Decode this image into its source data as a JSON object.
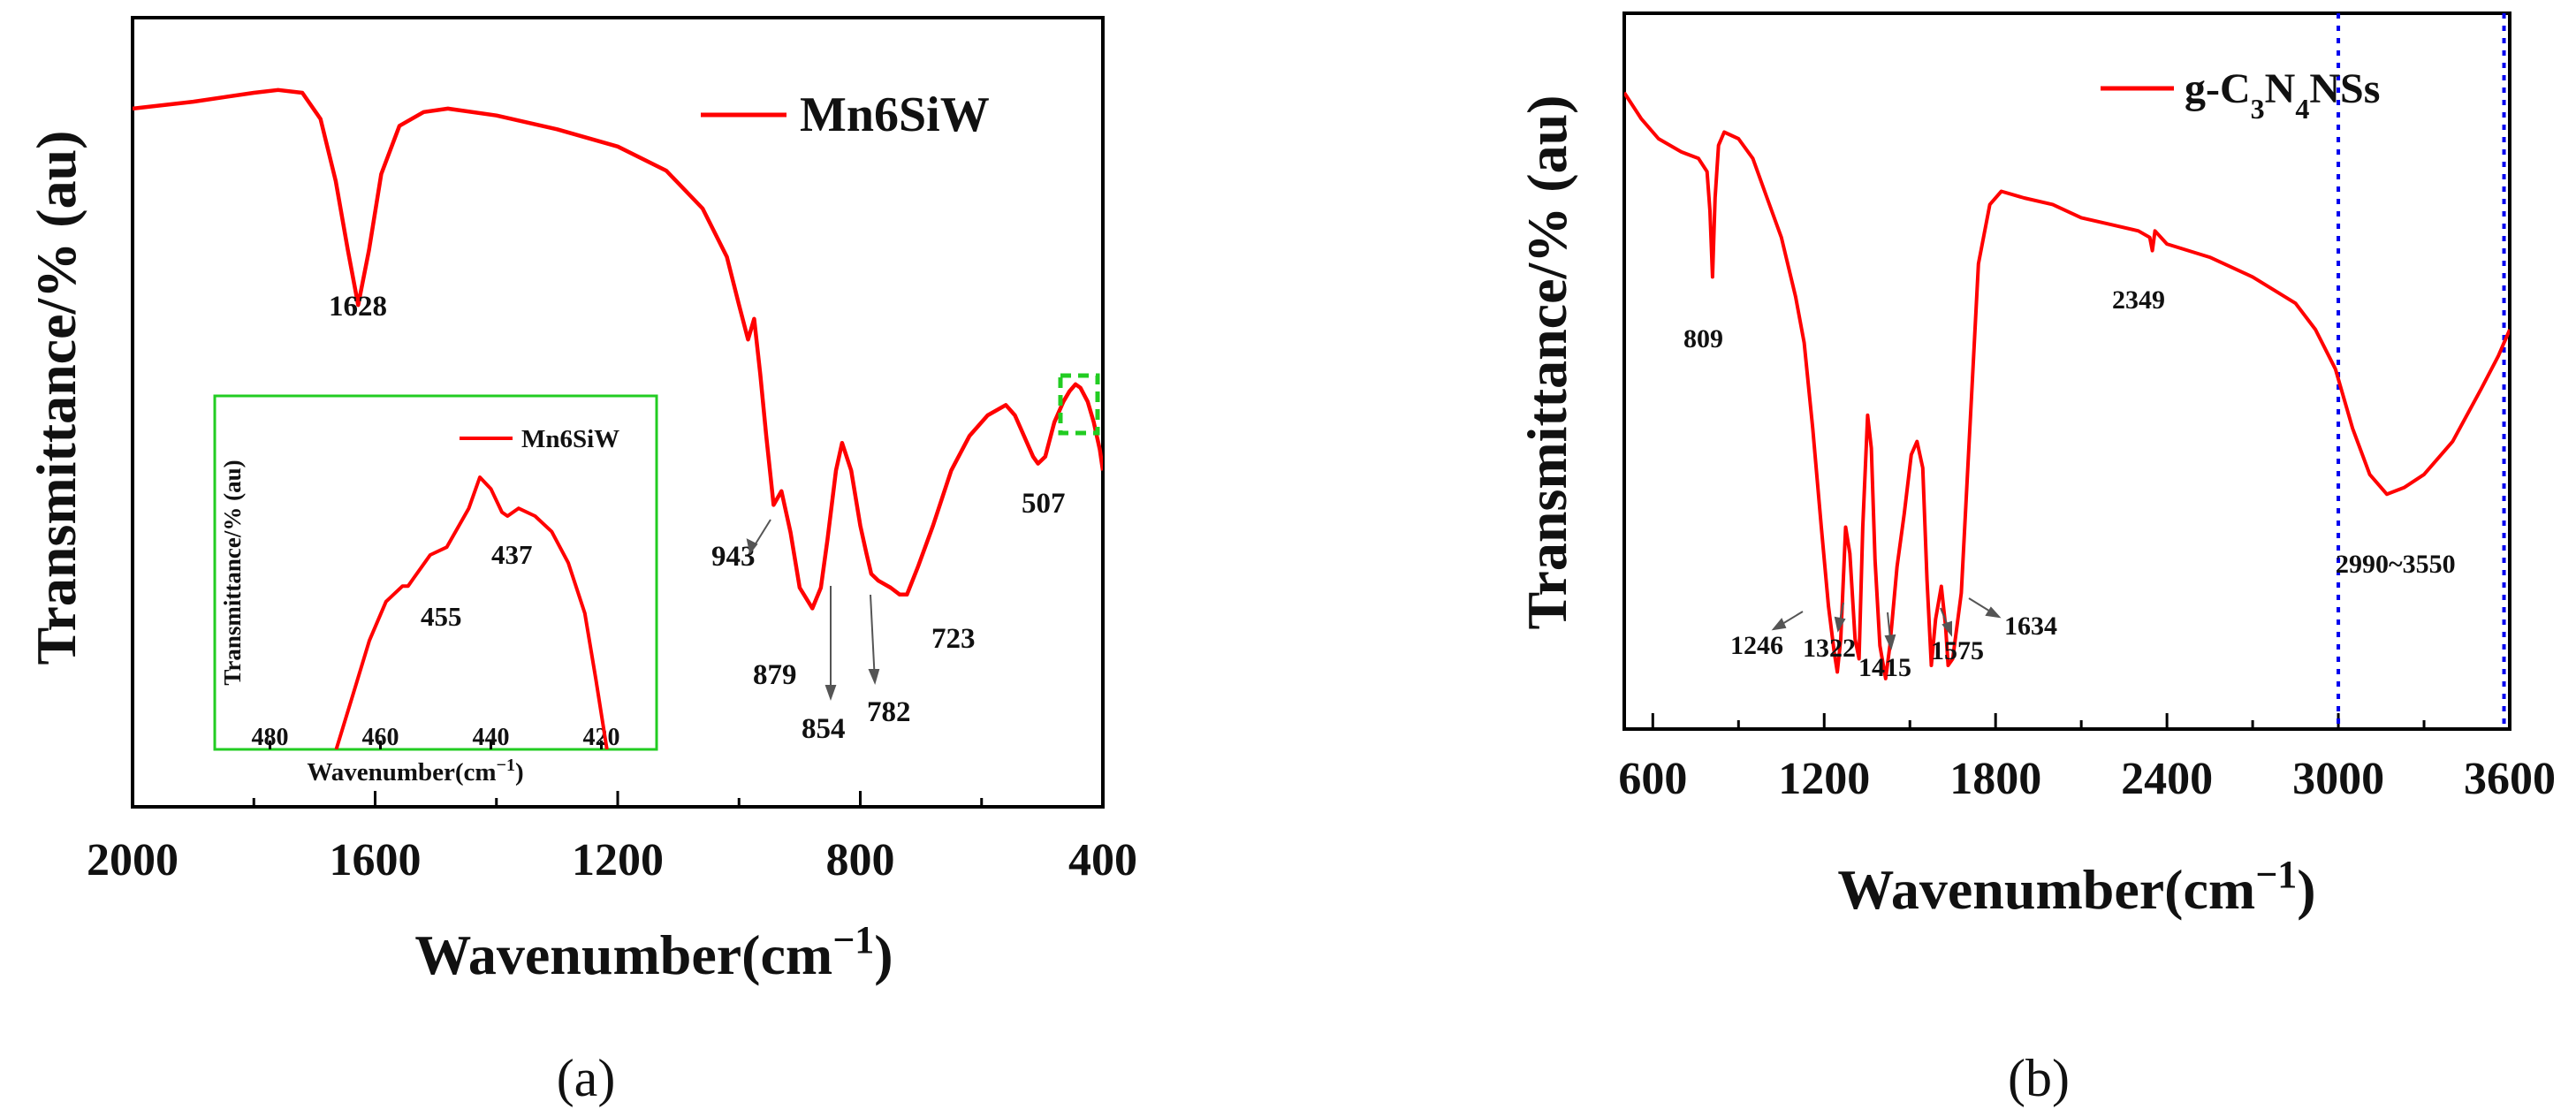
{
  "chart_data": [
    {
      "type": "line",
      "panel_label": "(a)",
      "xlabel": "Wavenumber",
      "xlabel_unit_base": "(cm",
      "xlabel_unit_exp": "−1",
      "xlabel_unit_close": ")",
      "ylabel": "Transmittance/% (au)",
      "xlim": [
        2000,
        400
      ],
      "x_ticks": [
        2000,
        1600,
        1200,
        800,
        400
      ],
      "series": [
        {
          "name": "Mn6SiW",
          "color": "#ff0000",
          "x": [
            2000,
            1900,
            1800,
            1760,
            1720,
            1690,
            1665,
            1645,
            1628,
            1610,
            1590,
            1560,
            1520,
            1480,
            1400,
            1300,
            1200,
            1120,
            1060,
            1020,
            1000,
            985,
            975,
            965,
            955,
            943,
            930,
            915,
            900,
            879,
            865,
            854,
            840,
            830,
            815,
            800,
            790,
            782,
            770,
            750,
            735,
            723,
            705,
            680,
            650,
            620,
            590,
            560,
            545,
            530,
            515,
            507,
            495,
            480,
            465,
            455,
            445,
            437,
            425,
            415,
            405,
            400
          ],
          "y": [
            0.945,
            0.955,
            0.968,
            0.972,
            0.968,
            0.93,
            0.84,
            0.74,
            0.66,
            0.74,
            0.85,
            0.92,
            0.94,
            0.945,
            0.935,
            0.915,
            0.89,
            0.855,
            0.8,
            0.73,
            0.66,
            0.61,
            0.64,
            0.56,
            0.47,
            0.37,
            0.39,
            0.33,
            0.25,
            0.22,
            0.25,
            0.32,
            0.42,
            0.46,
            0.42,
            0.34,
            0.3,
            0.27,
            0.26,
            0.25,
            0.24,
            0.24,
            0.28,
            0.34,
            0.42,
            0.47,
            0.5,
            0.515,
            0.5,
            0.47,
            0.44,
            0.43,
            0.44,
            0.49,
            0.52,
            0.535,
            0.545,
            0.54,
            0.52,
            0.49,
            0.45,
            0.42
          ]
        }
      ],
      "annotations": [
        "1628",
        "943",
        "879",
        "854",
        "782",
        "723",
        "507"
      ],
      "inset": {
        "type": "line",
        "xlabel": "Wavenumber",
        "xlabel_unit_base": "(cm",
        "xlabel_unit_exp": "−1",
        "xlabel_unit_close": ")",
        "ylabel": "Transmittance/% (au)",
        "xlim": [
          490,
          410
        ],
        "x_ticks": [
          480,
          460,
          440,
          420
        ],
        "ylim": [
          0,
          1
        ],
        "series": [
          {
            "name": "Mn6SiW",
            "color": "#ff0000",
            "x": [
              468,
              465,
              462,
              459,
              456,
              455,
              454,
              451,
              448,
              446,
              444,
              442,
              440,
              438,
              437,
              435,
              432,
              429,
              426,
              423,
              421,
              419
            ],
            "y": [
              0.0,
              0.14,
              0.28,
              0.38,
              0.42,
              0.42,
              0.44,
              0.5,
              0.52,
              0.57,
              0.62,
              0.7,
              0.67,
              0.61,
              0.6,
              0.62,
              0.6,
              0.56,
              0.48,
              0.35,
              0.18,
              0.0
            ]
          }
        ],
        "annotations": [
          "455",
          "437"
        ]
      }
    },
    {
      "type": "line",
      "panel_label": "(b)",
      "xlabel": "Wavenumber",
      "xlabel_unit_base": "(cm",
      "xlabel_unit_exp": "−1",
      "xlabel_unit_close": ")",
      "ylabel": "Transmittance/% (au)",
      "xlim": [
        500,
        3600
      ],
      "x_ticks": [
        600,
        1200,
        1800,
        2400,
        3000,
        3600
      ],
      "series": [
        {
          "name": "g-C3N4NSs",
          "legend_base": "g-C",
          "legend_sub1": "3",
          "legend_mid": "N",
          "legend_sub2": "4",
          "legend_end": "NSs",
          "color": "#ff0000",
          "x": [
            500,
            560,
            620,
            700,
            760,
            790,
            800,
            809,
            818,
            830,
            850,
            900,
            950,
            1000,
            1050,
            1100,
            1130,
            1160,
            1190,
            1215,
            1235,
            1246,
            1258,
            1275,
            1290,
            1308,
            1322,
            1335,
            1352,
            1365,
            1378,
            1395,
            1415,
            1430,
            1455,
            1480,
            1505,
            1525,
            1545,
            1560,
            1575,
            1590,
            1610,
            1625,
            1634,
            1650,
            1680,
            1710,
            1740,
            1780,
            1820,
            1900,
            2000,
            2100,
            2200,
            2300,
            2340,
            2349,
            2358,
            2400,
            2550,
            2700,
            2850,
            2920,
            2990,
            3050,
            3110,
            3170,
            3230,
            3300,
            3400,
            3500,
            3560,
            3600
          ],
          "y": [
            0.96,
            0.92,
            0.89,
            0.87,
            0.86,
            0.84,
            0.78,
            0.68,
            0.8,
            0.88,
            0.9,
            0.89,
            0.86,
            0.8,
            0.74,
            0.65,
            0.58,
            0.45,
            0.3,
            0.18,
            0.11,
            0.08,
            0.13,
            0.3,
            0.26,
            0.13,
            0.1,
            0.3,
            0.47,
            0.42,
            0.25,
            0.12,
            0.07,
            0.12,
            0.24,
            0.32,
            0.41,
            0.43,
            0.39,
            0.22,
            0.09,
            0.16,
            0.21,
            0.15,
            0.09,
            0.1,
            0.2,
            0.45,
            0.7,
            0.79,
            0.81,
            0.8,
            0.79,
            0.77,
            0.76,
            0.75,
            0.74,
            0.72,
            0.75,
            0.73,
            0.71,
            0.68,
            0.64,
            0.6,
            0.54,
            0.45,
            0.38,
            0.35,
            0.36,
            0.38,
            0.43,
            0.51,
            0.56,
            0.6
          ]
        }
      ],
      "annotations": [
        "809",
        "2349",
        "1246",
        "1322",
        "1415",
        "1575",
        "1634",
        "2990~3550"
      ],
      "vlines": [
        3000,
        3580
      ],
      "vline_color": "#0000ee"
    }
  ]
}
